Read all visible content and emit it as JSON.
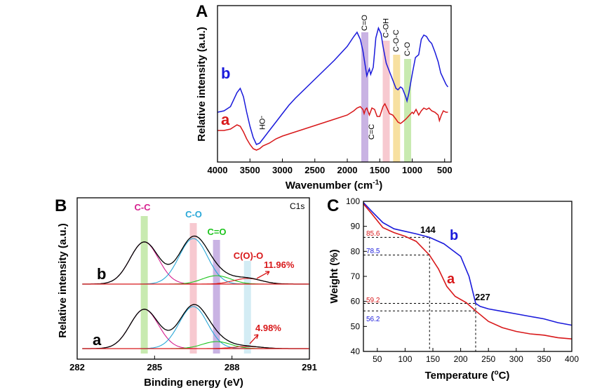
{
  "colors": {
    "blue": "#1a1adb",
    "red": "#d8181a",
    "black": "#000000",
    "green": "#1fc41f",
    "magenta": "#d6208f",
    "cyan": "#2aa8d8"
  },
  "chart_data": [
    {
      "panel": "A",
      "type": "line",
      "xlabel_main": "Wavenumber (cm",
      "xlabel_sup": "-1",
      "xlabel_end": ")",
      "ylabel": "Relative intensity (a.u.)",
      "xlim": [
        4000,
        400
      ],
      "xticks": [
        "4000",
        "3500",
        "3000",
        "2500",
        "2000",
        "1500",
        "1000",
        "500"
      ],
      "tick_values": [
        4000,
        3500,
        3000,
        2500,
        2000,
        1500,
        1000,
        500
      ],
      "series": [
        {
          "name": "b",
          "color": "#1a1adb",
          "x": [
            4000,
            3900,
            3800,
            3700,
            3650,
            3600,
            3550,
            3500,
            3450,
            3400,
            3350,
            3300,
            3200,
            3100,
            3000,
            2900,
            2800,
            2600,
            2400,
            2200,
            2000,
            1900,
            1850,
            1800,
            1760,
            1730,
            1700,
            1660,
            1640,
            1600,
            1560,
            1520,
            1480,
            1450,
            1400,
            1350,
            1300,
            1250,
            1220,
            1180,
            1150,
            1100,
            1080,
            1050,
            1000,
            950,
            900,
            860,
            820,
            780,
            740,
            700,
            650,
            600,
            560,
            520,
            480,
            450
          ],
          "y": [
            3.2,
            3.3,
            3.6,
            4.6,
            4.9,
            4.3,
            3.2,
            2.2,
            1.4,
            0.9,
            1.0,
            1.3,
            1.9,
            2.5,
            3.1,
            3.7,
            4.2,
            5.1,
            6.0,
            6.9,
            7.9,
            8.6,
            8.9,
            8.4,
            7.6,
            6.7,
            5.8,
            6.3,
            5.9,
            6.4,
            8.5,
            9.2,
            8.8,
            7.9,
            6.7,
            6.1,
            5.5,
            4.9,
            4.8,
            5.0,
            4.9,
            4.3,
            4.0,
            4.6,
            5.9,
            7.1,
            7.3,
            8.4,
            8.7,
            8.6,
            8.3,
            8.1,
            7.5,
            6.8,
            6.0,
            5.6,
            5.2,
            5.0
          ]
        },
        {
          "name": "a",
          "color": "#d8181a",
          "x": [
            4000,
            3900,
            3800,
            3700,
            3650,
            3600,
            3550,
            3500,
            3450,
            3400,
            3350,
            3300,
            3200,
            3100,
            3000,
            2800,
            2600,
            2400,
            2200,
            2000,
            1900,
            1850,
            1800,
            1760,
            1740,
            1720,
            1700,
            1660,
            1620,
            1580,
            1540,
            1500,
            1450,
            1420,
            1380,
            1350,
            1300,
            1250,
            1220,
            1180,
            1150,
            1100,
            1060,
            1020,
            1000,
            980,
            940,
            900,
            860,
            820,
            780,
            740,
            700,
            650,
            600,
            580,
            550,
            520,
            480,
            450
          ],
          "y": [
            1.9,
            1.9,
            2.0,
            2.3,
            2.2,
            1.8,
            1.3,
            0.9,
            0.6,
            0.5,
            0.6,
            0.8,
            1.0,
            1.3,
            1.5,
            1.8,
            2.1,
            2.4,
            2.7,
            3.0,
            3.3,
            3.5,
            3.6,
            3.4,
            3.1,
            3.4,
            3.5,
            3.0,
            3.5,
            3.4,
            2.9,
            2.9,
            3.6,
            3.8,
            3.4,
            3.1,
            3.0,
            2.7,
            2.5,
            2.4,
            2.5,
            2.7,
            2.9,
            3.1,
            3.2,
            3.1,
            3.4,
            3.0,
            3.3,
            3.5,
            3.4,
            3.5,
            3.3,
            3.2,
            3.0,
            2.6,
            3.0,
            3.3,
            3.2,
            3.2
          ]
        }
      ],
      "series_labels": [
        "b",
        "a"
      ],
      "annotations": {
        "oh": "-OH",
        "cc": "C=C"
      },
      "bands": [
        {
          "label": "C=O",
          "center": 1730,
          "color": "#c9b3e3"
        },
        {
          "label": "C-OH",
          "center": 1400,
          "color": "#f7c9d0"
        },
        {
          "label": "C-O-C",
          "center": 1240,
          "color": "#f7e0a0"
        },
        {
          "label": "C-O",
          "center": 1070,
          "color": "#c8eab0"
        }
      ]
    },
    {
      "panel": "B",
      "type": "line",
      "xlabel": "Binding energy (eV)",
      "ylabel": "Relative intensity (a.u.)",
      "tag": "C1s",
      "xlim": [
        282,
        291
      ],
      "xticks": [
        "282",
        "285",
        "288",
        "291"
      ],
      "tick_values": [
        282,
        285,
        288,
        291
      ],
      "components": [
        "C-C",
        "C-O",
        "C=O",
        "C(O)-O"
      ],
      "component_positions": [
        284.6,
        286.5,
        287.4,
        288.6
      ],
      "component_colors": [
        "#d6208f",
        "#2aa8d8",
        "#1fc41f",
        "#d8181a"
      ],
      "band_colors": [
        "#c8eab0",
        "#f7c9d0",
        "#c9b3e3",
        "#d3ecf4"
      ],
      "series_labels": [
        "b",
        "a"
      ],
      "percent_labels": [
        "11.96%",
        "4.98%"
      ],
      "curves": {
        "b": {
          "amps": [
            60,
            65,
            12,
            8
          ],
          "widths": [
            0.55,
            0.55,
            0.55,
            0.55
          ]
        },
        "a": {
          "amps": [
            56,
            60,
            10,
            3
          ],
          "widths": [
            0.55,
            0.55,
            0.55,
            0.55
          ]
        }
      }
    },
    {
      "panel": "C",
      "type": "line",
      "xlabel_main": "Temperature (",
      "xlabel_sup": "o",
      "xlabel_end": "C)",
      "ylabel": "Weight (%)",
      "xlim": [
        25,
        400
      ],
      "ylim": [
        40,
        100
      ],
      "xticks": [
        "50",
        "100",
        "150",
        "200",
        "250",
        "300",
        "350",
        "400"
      ],
      "xtick_values": [
        50,
        100,
        150,
        200,
        250,
        300,
        350,
        400
      ],
      "yticks": [
        "40",
        "50",
        "60",
        "70",
        "80",
        "90",
        "100"
      ],
      "ytick_values": [
        40,
        50,
        60,
        70,
        80,
        90,
        100
      ],
      "series": [
        {
          "name": "b",
          "color": "#1a1adb",
          "x": [
            25,
            40,
            60,
            80,
            100,
            120,
            144,
            170,
            200,
            215,
            227,
            235,
            250,
            275,
            300,
            325,
            350,
            375,
            400
          ],
          "y": [
            99.5,
            96,
            91.5,
            89,
            88,
            87,
            85.6,
            83,
            78,
            70,
            59.2,
            58,
            57,
            56,
            55,
            54,
            53,
            51.5,
            50.5
          ]
        },
        {
          "name": "a",
          "color": "#d8181a",
          "x": [
            25,
            40,
            60,
            80,
            100,
            120,
            144,
            160,
            175,
            190,
            210,
            227,
            250,
            275,
            300,
            325,
            350,
            375,
            400
          ],
          "y": [
            99,
            95,
            89.5,
            87.5,
            86,
            84,
            78.5,
            73,
            66,
            62,
            59.5,
            56.2,
            52,
            49.5,
            48,
            47,
            46.5,
            45.5,
            45
          ]
        }
      ],
      "series_labels": [
        "b",
        "a"
      ],
      "annotations": {
        "t144": "144",
        "t227": "227",
        "w856": "85.6",
        "w785": "78.5",
        "w592": "59.2",
        "w562": "56.2"
      },
      "ref_values": {
        "t1": 144,
        "t2": 227,
        "w1": 85.6,
        "w2": 78.5,
        "w3": 59.2,
        "w4": 56.2
      }
    }
  ]
}
